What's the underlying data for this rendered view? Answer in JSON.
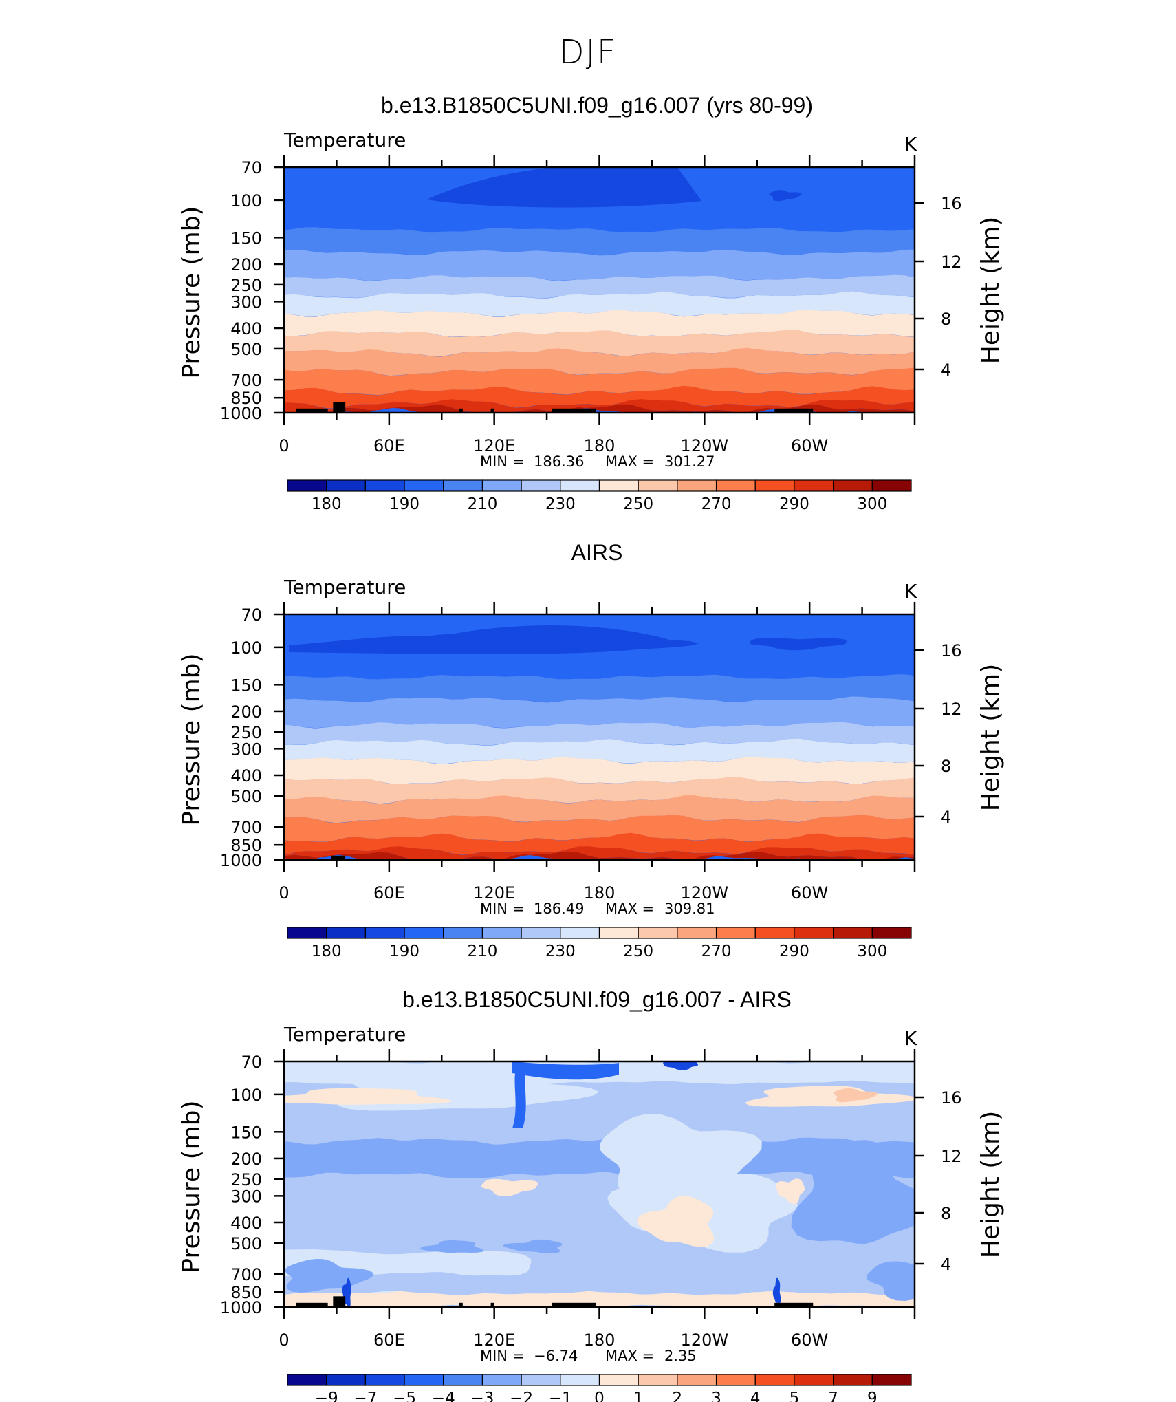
{
  "figure_title": "DJF",
  "chart_data": [
    {
      "type": "heatmap",
      "title": "b.e13.B1850C5UNI.f09_g16.007 (yrs 80-99)",
      "left_label": "Temperature",
      "right_label": "K",
      "ylabel": "Pressure (mb)",
      "ylabel_right": "Height (km)",
      "x_ticks": [
        "0",
        "60E",
        "120E",
        "180",
        "120W",
        "60W"
      ],
      "y_ticks": [
        "70",
        "100",
        "150",
        "200",
        "250",
        "300",
        "400",
        "500",
        "700",
        "850",
        "1000"
      ],
      "y_ticks_right": [
        "16",
        "12",
        "8",
        "4"
      ],
      "stats": {
        "min_label": "MIN =",
        "min": "186.36",
        "max_label": "MAX =",
        "max": "301.27"
      },
      "colorbar_labels": [
        "180",
        "190",
        "210",
        "230",
        "250",
        "270",
        "290",
        "300"
      ],
      "colors": [
        "#08088f",
        "#0a2fc4",
        "#1448e0",
        "#2566f5",
        "#4a83f2",
        "#80a8f8",
        "#b0c8f8",
        "#d7e6fa",
        "#fde8d8",
        "#fcc8ab",
        "#fba57f",
        "#fb7e4c",
        "#f55022",
        "#dd3010",
        "#b81a08",
        "#880404"
      ],
      "field_kind": "temp",
      "variant": 0
    },
    {
      "type": "heatmap",
      "title": "AIRS",
      "left_label": "Temperature",
      "right_label": "K",
      "ylabel": "Pressure (mb)",
      "ylabel_right": "Height (km)",
      "x_ticks": [
        "0",
        "60E",
        "120E",
        "180",
        "120W",
        "60W"
      ],
      "y_ticks": [
        "70",
        "100",
        "150",
        "200",
        "250",
        "300",
        "400",
        "500",
        "700",
        "850",
        "1000"
      ],
      "y_ticks_right": [
        "16",
        "12",
        "8",
        "4"
      ],
      "stats": {
        "min_label": "MIN =",
        "min": "186.49",
        "max_label": "MAX =",
        "max": "309.81"
      },
      "colorbar_labels": [
        "180",
        "190",
        "210",
        "230",
        "250",
        "270",
        "290",
        "300"
      ],
      "colors": [
        "#08088f",
        "#0a2fc4",
        "#1448e0",
        "#2566f5",
        "#4a83f2",
        "#80a8f8",
        "#b0c8f8",
        "#d7e6fa",
        "#fde8d8",
        "#fcc8ab",
        "#fba57f",
        "#fb7e4c",
        "#f55022",
        "#dd3010",
        "#b81a08",
        "#880404"
      ],
      "field_kind": "temp",
      "variant": 1
    },
    {
      "type": "heatmap",
      "title": "b.e13.B1850C5UNI.f09_g16.007 - AIRS",
      "left_label": "Temperature",
      "right_label": "K",
      "ylabel": "Pressure (mb)",
      "ylabel_right": "Height (km)",
      "x_ticks": [
        "0",
        "60E",
        "120E",
        "180",
        "120W",
        "60W"
      ],
      "y_ticks": [
        "70",
        "100",
        "150",
        "200",
        "250",
        "300",
        "400",
        "500",
        "700",
        "850",
        "1000"
      ],
      "y_ticks_right": [
        "16",
        "12",
        "8",
        "4"
      ],
      "stats": {
        "min_label": "MIN =",
        "min": "−6.74",
        "max_label": "MAX =",
        "max": "2.35"
      },
      "colorbar_labels": [
        "−9",
        "−7",
        "−5",
        "−4",
        "−3",
        "−2",
        "−1",
        "0",
        "1",
        "2",
        "3",
        "4",
        "5",
        "7",
        "9"
      ],
      "colors": [
        "#08088f",
        "#0a2fc4",
        "#1448e0",
        "#2566f5",
        "#4a83f2",
        "#80a8f8",
        "#b0c8f8",
        "#d7e6fa",
        "#fde8d8",
        "#fcc8ab",
        "#fba57f",
        "#fb7e4c",
        "#f55022",
        "#dd3010",
        "#b81a08",
        "#880404"
      ],
      "field_kind": "diff",
      "variant": 2
    }
  ]
}
